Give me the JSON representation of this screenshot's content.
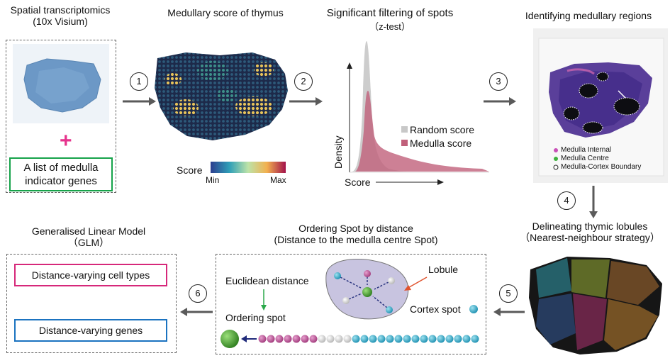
{
  "colors": {
    "arrow": "#5a5a5a",
    "green_border": "#16a34a",
    "pink_border": "#d6287a",
    "blue_border": "#1b73c0",
    "plus": "#e6338c",
    "medulla_fill": "#c0607a",
    "random_fill": "#c8c8c8"
  },
  "panel1": {
    "title_line1": "Spatial transcriptomics",
    "title_line2": "(10x Visium)",
    "plus_symbol": "+",
    "genes_line1": "A list of medulla",
    "genes_line2": "indicator genes"
  },
  "panel2": {
    "title": "Medullary score of thymus",
    "legend_label": "Score",
    "legend_min": "Min",
    "legend_max": "Max"
  },
  "panel3": {
    "title": "Significant filtering of spots",
    "subtitle": "（z-test）",
    "ylabel": "Density",
    "xlabel": "Score",
    "legend": [
      "Random score",
      "Medulla score"
    ]
  },
  "panel4": {
    "title": "Identifying medullary regions",
    "legend": [
      "Medulla Internal",
      "Medulla Centre",
      "Medulla-Cortex Boundary"
    ]
  },
  "panel5": {
    "title_line1": "Delineating thymic lobules",
    "title_line2": "（Nearest-neighbour strategy）"
  },
  "panel6": {
    "title_line1": "Ordering Spot by distance",
    "title_line2": "(Distance to the medulla centre Spot)",
    "euclidean": "Euclidean distance",
    "lobule": "Lobule",
    "ordering_spot": "Ordering spot",
    "cortex_spot": "Cortex spot"
  },
  "panel7": {
    "title_line1": "Generalised Linear Model",
    "title_line2": "（GLM）",
    "cell_types": "Distance-varying cell types",
    "genes": "Distance-varying genes"
  },
  "steps": [
    "1",
    "2",
    "3",
    "4",
    "5",
    "6"
  ]
}
